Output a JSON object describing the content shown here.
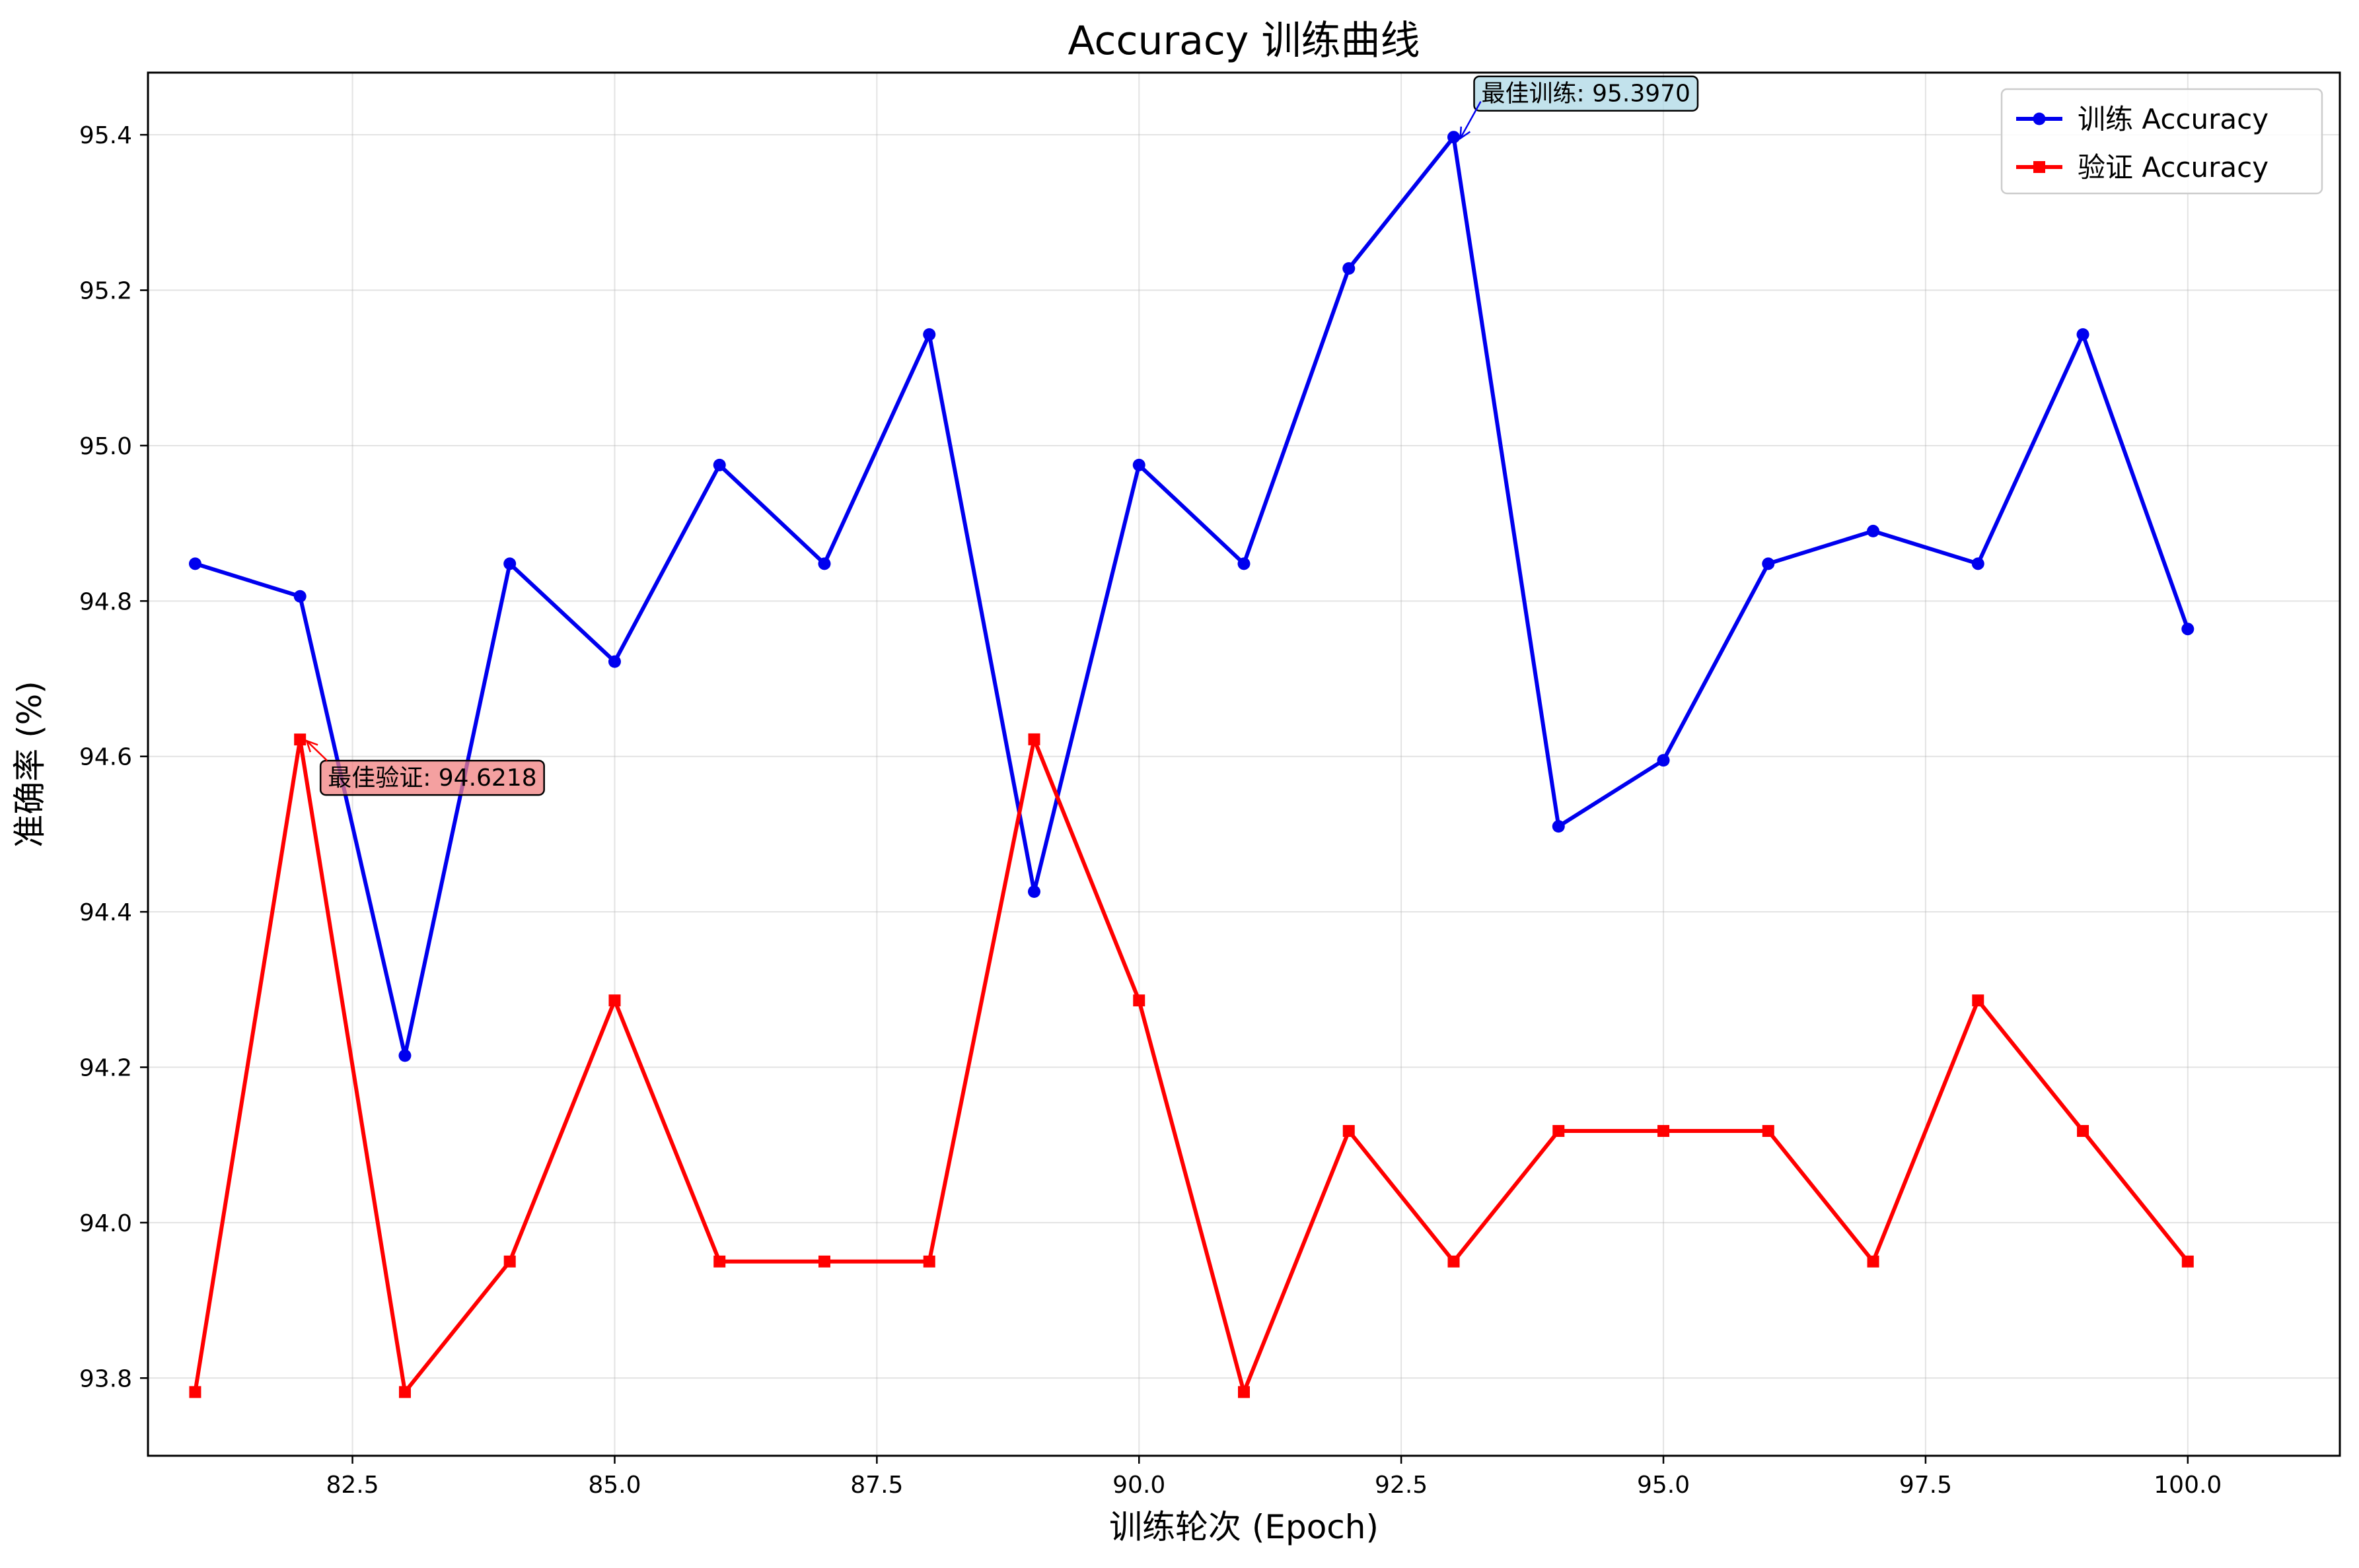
{
  "chart_data": {
    "type": "line",
    "title": "Accuracy 训练曲线",
    "xlabel": "训练轮次 (Epoch)",
    "ylabel": "准确率 (%)",
    "xlim": [
      80.55,
      101.45
    ],
    "ylim": [
      93.7,
      95.48
    ],
    "x_ticks": [
      82.5,
      85.0,
      87.5,
      90.0,
      92.5,
      95.0,
      97.5,
      100.0
    ],
    "x_tick_labels": [
      "82.5",
      "85.0",
      "87.5",
      "90.0",
      "92.5",
      "95.0",
      "97.5",
      "100.0"
    ],
    "y_ticks": [
      93.8,
      94.0,
      94.2,
      94.4,
      94.6,
      94.8,
      95.0,
      95.2,
      95.4
    ],
    "y_tick_labels": [
      "93.8",
      "94.0",
      "94.2",
      "94.4",
      "94.6",
      "94.8",
      "95.0",
      "95.2",
      "95.4"
    ],
    "grid": true,
    "legend_position": "top-right",
    "x": [
      81,
      82,
      83,
      84,
      85,
      86,
      87,
      88,
      89,
      90,
      91,
      92,
      93,
      94,
      95,
      96,
      97,
      98,
      99,
      100
    ],
    "series": [
      {
        "name": "训练 Accuracy",
        "color": "#0000ee",
        "marker": "circle",
        "values": [
          94.848,
          94.806,
          94.215,
          94.848,
          94.722,
          94.975,
          94.848,
          95.143,
          94.426,
          94.975,
          94.848,
          95.228,
          95.397,
          94.51,
          94.595,
          94.848,
          94.89,
          94.848,
          95.143,
          94.764
        ]
      },
      {
        "name": "验证 Accuracy",
        "color": "#ff0000",
        "marker": "square",
        "values": [
          93.782,
          94.6218,
          93.782,
          93.95,
          94.286,
          93.95,
          93.95,
          93.95,
          94.622,
          94.286,
          93.782,
          94.118,
          93.95,
          94.118,
          94.118,
          94.118,
          93.95,
          94.286,
          94.118,
          93.95
        ]
      }
    ],
    "annotations": [
      {
        "text": "最佳训练: 95.3970",
        "x": 93,
        "y": 95.397,
        "series": 0,
        "box_color": "#add8e6"
      },
      {
        "text": "最佳验证: 94.6218",
        "x": 82,
        "y": 94.6218,
        "series": 1,
        "box_color": "#f08080"
      }
    ]
  }
}
